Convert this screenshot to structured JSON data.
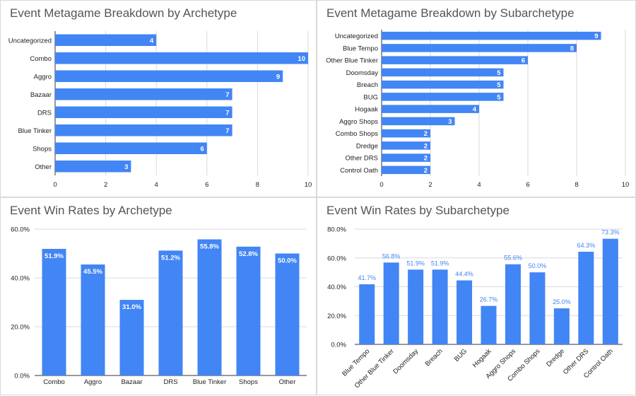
{
  "colors": {
    "bar": "#4285f4",
    "grid": "#d9d9d9",
    "axis": "#333333",
    "label_in": "#ffffff",
    "label_out": "#4285f4",
    "title": "#555555"
  },
  "chart_data": [
    {
      "type": "bar",
      "orientation": "horizontal",
      "title": "Event Metagame Breakdown by Archetype",
      "categories": [
        "Uncategorized",
        "Combo",
        "Aggro",
        "Bazaar",
        "DRS",
        "Blue Tinker",
        "Shops",
        "Other"
      ],
      "values": [
        4,
        10,
        9,
        7,
        7,
        7,
        6,
        3
      ],
      "value_labels": [
        "4",
        "10",
        "9",
        "7",
        "7",
        "7",
        "6",
        "3"
      ],
      "xlim": [
        0,
        10
      ],
      "ticks": [
        0,
        2,
        4,
        6,
        8,
        10
      ],
      "tick_labels": [
        "0",
        "2",
        "4",
        "6",
        "8",
        "10"
      ],
      "grid": true,
      "legend": "none"
    },
    {
      "type": "bar",
      "orientation": "horizontal",
      "title": "Event Metagame Breakdown by Subarchetype",
      "categories": [
        "Uncategorized",
        "Blue Tempo",
        "Other Blue Tinker",
        "Doomsday",
        "Breach",
        "BUG",
        "Hogaak",
        "Aggro Shops",
        "Combo Shops",
        "Dredge",
        "Other DRS",
        "Control Oath"
      ],
      "values": [
        9,
        8,
        6,
        5,
        5,
        5,
        4,
        3,
        2,
        2,
        2,
        2
      ],
      "value_labels": [
        "9",
        "8",
        "6",
        "5",
        "5",
        "5",
        "4",
        "3",
        "2",
        "2",
        "2",
        "2"
      ],
      "xlim": [
        0,
        10
      ],
      "ticks": [
        0,
        2,
        4,
        6,
        8,
        10
      ],
      "tick_labels": [
        "0",
        "2",
        "4",
        "6",
        "8",
        "10"
      ],
      "grid": true,
      "legend": "none"
    },
    {
      "type": "bar",
      "orientation": "vertical",
      "title": "Event Win Rates by Archetype",
      "categories": [
        "Combo",
        "Aggro",
        "Bazaar",
        "DRS",
        "Blue Tinker",
        "Shops",
        "Other"
      ],
      "values": [
        51.9,
        45.5,
        31.0,
        51.2,
        55.8,
        52.8,
        50.0
      ],
      "value_labels": [
        "51.9%",
        "45.5%",
        "31.0%",
        "51.2%",
        "55.8%",
        "52.8%",
        "50.0%"
      ],
      "ylim": [
        0,
        60
      ],
      "ticks": [
        0,
        20,
        40,
        60
      ],
      "tick_labels": [
        "0.0%",
        "20.0%",
        "40.0%",
        "60.0%"
      ],
      "grid": true,
      "legend": "none"
    },
    {
      "type": "bar",
      "orientation": "vertical",
      "title": "Event Win Rates by Subarchetype",
      "categories": [
        "Blue Tempo",
        "Other Blue Tinker",
        "Doomsday",
        "Breach",
        "BUG",
        "Hogaak",
        "Aggro Shops",
        "Combo Shops",
        "Dredge",
        "Other DRS",
        "Control Oath"
      ],
      "values": [
        41.7,
        56.8,
        51.9,
        51.9,
        44.4,
        26.7,
        55.6,
        50.0,
        25.0,
        64.3,
        73.3
      ],
      "value_labels": [
        "41.7%",
        "56.8%",
        "51.9%",
        "51.9%",
        "44.4%",
        "26.7%",
        "55.6%",
        "50.0%",
        "25.0%",
        "64.3%",
        "73.3%"
      ],
      "ylim": [
        0,
        80
      ],
      "ticks": [
        0,
        20,
        40,
        60,
        80
      ],
      "tick_labels": [
        "0.0%",
        "20.0%",
        "40.0%",
        "60.0%",
        "80.0%"
      ],
      "grid": true,
      "legend": "none"
    }
  ]
}
